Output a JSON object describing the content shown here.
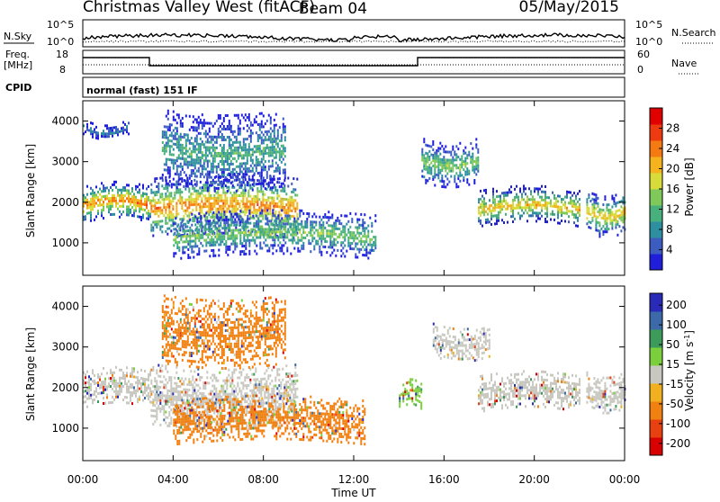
{
  "header": {
    "title": "Christmas Valley West (fitACF)",
    "beam": "Beam 04",
    "date": "05/May/2015"
  },
  "nsky_panel": {
    "left_label": "N.Sky",
    "right_label": "N.Search",
    "left_ticks": [
      "10^5",
      "10^0"
    ],
    "right_ticks": [
      "10^5",
      "10^0"
    ]
  },
  "freq_panel": {
    "left_label_line1": "Freq.",
    "left_label_line2": "[MHz]",
    "right_label": "Nave",
    "left_ticks": [
      "18",
      "8"
    ],
    "right_ticks": [
      "60",
      "0"
    ]
  },
  "cpid_panel": {
    "label": "CPID",
    "mode_text": "normal (fast) 151 IF"
  },
  "x_axis": {
    "label": "Time UT",
    "ticks": [
      "00:00",
      "04:00",
      "08:00",
      "12:00",
      "16:00",
      "20:00",
      "00:00"
    ]
  },
  "chart_data": [
    {
      "type": "heatmap",
      "title": "",
      "ylabel": "Slant Range [km]",
      "xlabel": "Time UT",
      "ylim": [
        200,
        4500
      ],
      "xlim": [
        0,
        24
      ],
      "y_ticks": [
        "1000",
        "2000",
        "3000",
        "4000"
      ],
      "colorbar": {
        "label": "Power [dB]",
        "ticks": [
          "4",
          "8",
          "12",
          "16",
          "20",
          "24",
          "28"
        ],
        "range": [
          0,
          32
        ],
        "colors": [
          "#1f1fd9",
          "#3c5cc0",
          "#2e8fa0",
          "#48b07c",
          "#7fc85a",
          "#d8dc3a",
          "#f3b21e",
          "#f57a12",
          "#ee3a10",
          "#e00000"
        ]
      },
      "echo_bands": [
        {
          "t_start": 0.0,
          "t_end": 3.0,
          "range_min": 1500,
          "range_max": 2400,
          "peak_db": 28
        },
        {
          "t_start": 0.0,
          "t_end": 2.0,
          "range_min": 3700,
          "range_max": 4050,
          "peak_db": 12
        },
        {
          "t_start": 3.0,
          "t_end": 9.5,
          "range_min": 1100,
          "range_max": 2600,
          "peak_db": 28
        },
        {
          "t_start": 3.5,
          "t_end": 9.0,
          "range_min": 2400,
          "range_max": 4300,
          "peak_db": 14
        },
        {
          "t_start": 4.0,
          "t_end": 13.0,
          "range_min": 600,
          "range_max": 1700,
          "peak_db": 16
        },
        {
          "t_start": 15.0,
          "t_end": 17.5,
          "range_min": 2500,
          "range_max": 3600,
          "peak_db": 16
        },
        {
          "t_start": 17.5,
          "t_end": 22.0,
          "range_min": 1400,
          "range_max": 2300,
          "peak_db": 24
        },
        {
          "t_start": 22.3,
          "t_end": 24.0,
          "range_min": 1300,
          "range_max": 2300,
          "peak_db": 24
        }
      ]
    },
    {
      "type": "heatmap",
      "title": "",
      "ylabel": "Slant Range [km]",
      "xlabel": "Time UT",
      "ylim": [
        200,
        4500
      ],
      "xlim": [
        0,
        24
      ],
      "y_ticks": [
        "1000",
        "2000",
        "3000",
        "4000"
      ],
      "colorbar": {
        "label": "Velocity [m s^-1]",
        "ticks": [
          "200",
          "100",
          "50",
          "15",
          "-15",
          "-50",
          "-100",
          "-200"
        ],
        "colors": [
          "#2a2ab8",
          "#3c6aa8",
          "#3c9a5a",
          "#7ccf3c",
          "#c8c8c0",
          "#f0b020",
          "#f08010",
          "#e84010",
          "#d80000"
        ]
      },
      "echo_bands": [
        {
          "t_start": 0.0,
          "t_end": 3.0,
          "range_min": 1500,
          "range_max": 2400,
          "velocity": 0
        },
        {
          "t_start": 3.0,
          "t_end": 9.5,
          "range_min": 1100,
          "range_max": 2600,
          "velocity": 0
        },
        {
          "t_start": 4.0,
          "t_end": 12.5,
          "range_min": 600,
          "range_max": 1700,
          "velocity": -60
        },
        {
          "t_start": 3.5,
          "t_end": 9.0,
          "range_min": 2600,
          "range_max": 4300,
          "velocity": -40
        },
        {
          "t_start": 14.0,
          "t_end": 15.0,
          "range_min": 1500,
          "range_max": 2100,
          "velocity": 50
        },
        {
          "t_start": 15.5,
          "t_end": 18.0,
          "range_min": 2800,
          "range_max": 3600,
          "velocity": 0
        },
        {
          "t_start": 17.5,
          "t_end": 22.0,
          "range_min": 1400,
          "range_max": 2300,
          "velocity": 0
        },
        {
          "t_start": 22.3,
          "t_end": 24.0,
          "range_min": 1500,
          "range_max": 2400,
          "velocity": 0
        }
      ]
    }
  ]
}
